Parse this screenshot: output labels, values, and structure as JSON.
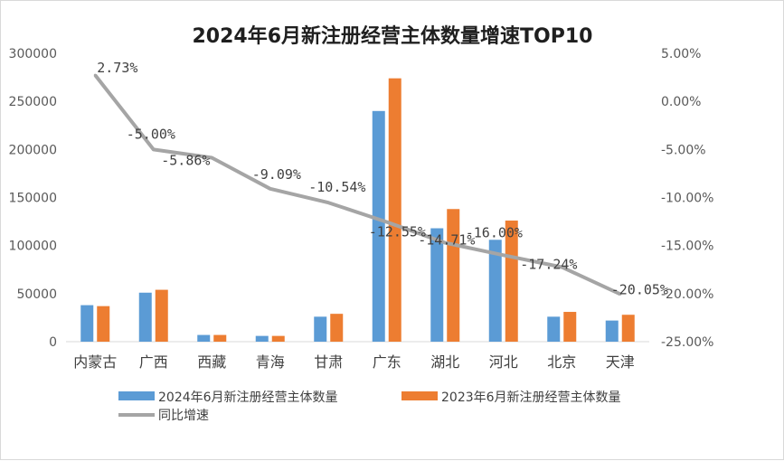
{
  "chart_data": {
    "type": "bar",
    "title": "2024年6月新注册经营主体数量增速TOP10",
    "categories": [
      "内蒙古",
      "广西",
      "西藏",
      "青海",
      "甘肃",
      "广东",
      "湖北",
      "河北",
      "北京",
      "天津"
    ],
    "series": [
      {
        "name": "2024年6月新注册经营主体数量",
        "type": "bar",
        "axis": "left",
        "color": "#5b9bd5",
        "values": [
          38000,
          51000,
          7000,
          6000,
          26000,
          240000,
          118000,
          106000,
          26000,
          22000
        ]
      },
      {
        "name": "2023年6月新注册经营主体数量",
        "type": "bar",
        "axis": "left",
        "color": "#ed7d31",
        "values": [
          37000,
          54000,
          7000,
          6000,
          29000,
          274000,
          138000,
          126000,
          31000,
          28000
        ]
      },
      {
        "name": "同比增速",
        "type": "line",
        "axis": "right",
        "color": "#a5a5a5",
        "values": [
          2.73,
          -5.0,
          -5.86,
          -9.09,
          -10.54,
          -12.55,
          -14.71,
          -16.0,
          -17.24,
          -20.05
        ],
        "labels": [
          "2.73%",
          "-5.00%",
          "-5.86%",
          "-9.09%",
          "-10.54%",
          "-12.55%",
          "-14.71%",
          "-16.00%",
          "-17.24%",
          "-20.05%"
        ]
      }
    ],
    "y_left": {
      "min": 0,
      "max": 300000,
      "step": 50000,
      "ticks": [
        "0",
        "50000",
        "100000",
        "150000",
        "200000",
        "250000",
        "300000"
      ]
    },
    "y_right": {
      "min": -25,
      "max": 5,
      "step": 5,
      "ticks": [
        "-25.00%",
        "-20.00%",
        "-15.00%",
        "-10.00%",
        "-5.00%",
        "0.00%",
        "5.00%"
      ]
    },
    "grid": false,
    "legend_position": "bottom"
  }
}
